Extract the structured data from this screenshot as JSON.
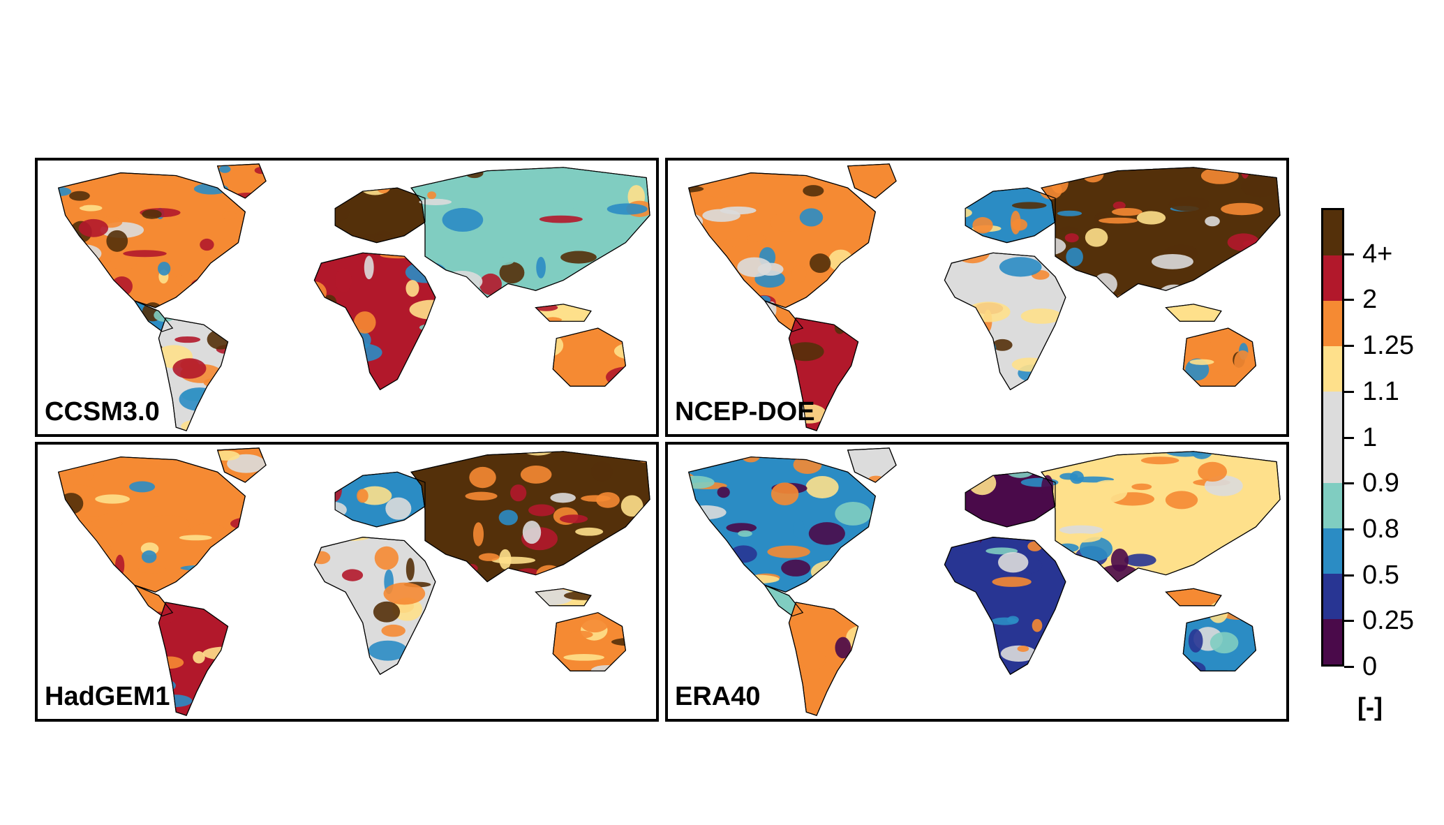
{
  "panels": [
    {
      "label": "CCSM3.0",
      "tone": "mixed"
    },
    {
      "label": "NCEP-DOE",
      "tone": "warm"
    },
    {
      "label": "HadGEM1",
      "tone": "warm"
    },
    {
      "label": "ERA40",
      "tone": "cool"
    }
  ],
  "colorbar": {
    "colors": [
      "#54300a",
      "#b2182b",
      "#f58a33",
      "#fee08b",
      "#dcdcdc",
      "#dcdcdc",
      "#80cdc1",
      "#2b8cc4",
      "#283593",
      "#4a0a4a"
    ],
    "tick_labels": [
      "4+",
      "2",
      "1.25",
      "1.1",
      "1",
      "0.9",
      "0.8",
      "0.5",
      "0.25",
      "0"
    ],
    "unit": "[-]"
  }
}
